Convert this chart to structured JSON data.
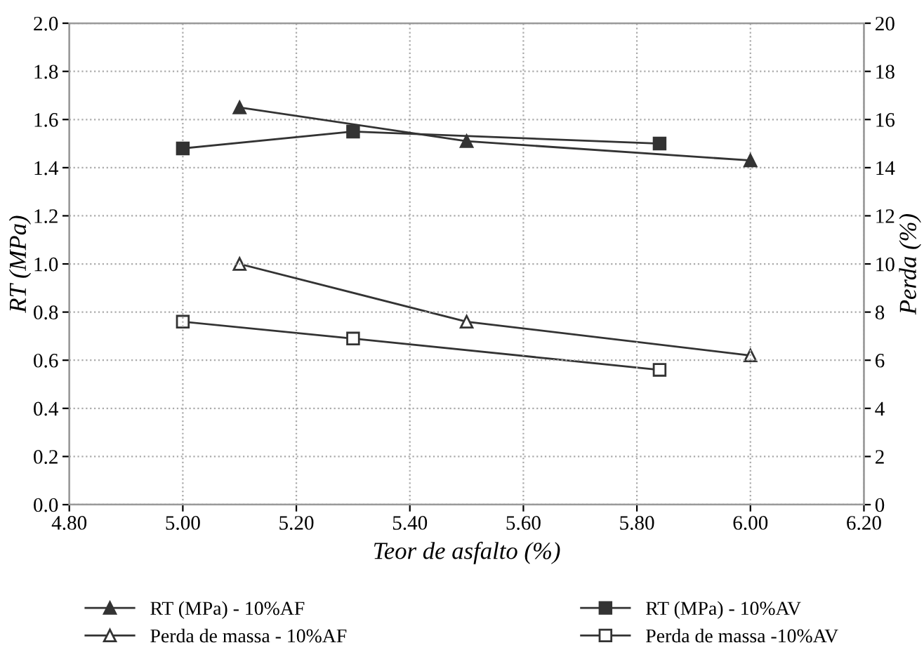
{
  "chart_data": {
    "type": "line",
    "xlabel": "Teor de asfalto (%)",
    "ylabel": "RT (MPa)",
    "y2label": "Perda (%)",
    "xlim": [
      4.8,
      6.2
    ],
    "xticks": [
      {
        "value": 4.8,
        "label": "4.80"
      },
      {
        "value": 5.0,
        "label": "5.00"
      },
      {
        "value": 5.2,
        "label": "5.20"
      },
      {
        "value": 5.4,
        "label": "5.40"
      },
      {
        "value": 5.6,
        "label": "5.60"
      },
      {
        "value": 5.8,
        "label": "5.80"
      },
      {
        "value": 6.0,
        "label": "6.00"
      },
      {
        "value": 6.2,
        "label": "6.20"
      }
    ],
    "ylim": [
      0,
      2
    ],
    "yticks": [
      {
        "value": 0,
        "label": "0.0"
      },
      {
        "value": 0.2,
        "label": "0.2"
      },
      {
        "value": 0.4,
        "label": "0.4"
      },
      {
        "value": 0.6,
        "label": "0.6"
      },
      {
        "value": 0.8,
        "label": "0.8"
      },
      {
        "value": 1.0,
        "label": "1.0"
      },
      {
        "value": 1.2,
        "label": "1.2"
      },
      {
        "value": 1.4,
        "label": "1.4"
      },
      {
        "value": 1.6,
        "label": "1.6"
      },
      {
        "value": 1.8,
        "label": "1.8"
      },
      {
        "value": 2.0,
        "label": "2.0"
      }
    ],
    "y2lim": [
      0,
      20
    ],
    "y2ticks": [
      0,
      2,
      4,
      6,
      8,
      10,
      12,
      14,
      16,
      18,
      20
    ],
    "grid": true,
    "legend": "bottom",
    "line_style": "solid",
    "series": [
      {
        "name": "RT (MPa) - 10%AF",
        "color": "#333333",
        "marker": "triangle",
        "x": [
          5.1,
          5.5,
          6.0
        ],
        "values": [
          1.65,
          1.51,
          1.43
        ]
      },
      {
        "name": "RT (MPa) - 10%AV",
        "color": "#333333",
        "marker": "square",
        "x": [
          5.0,
          5.3,
          5.84
        ],
        "values": [
          1.48,
          1.55,
          1.5
        ]
      },
      {
        "name": "Perda de massa - 10%AF",
        "color": "#333333",
        "marker": "triangle",
        "axis": "y2",
        "x": [
          5.1,
          5.5,
          6.0
        ],
        "values": [
          10.0,
          7.6,
          6.2
        ]
      },
      {
        "name": "Perda de massa -10%AV",
        "color": "#333333",
        "marker": "square",
        "axis": "y2",
        "x": [
          5.0,
          5.3,
          5.84
        ],
        "values": [
          7.6,
          6.9,
          5.6
        ]
      }
    ]
  }
}
